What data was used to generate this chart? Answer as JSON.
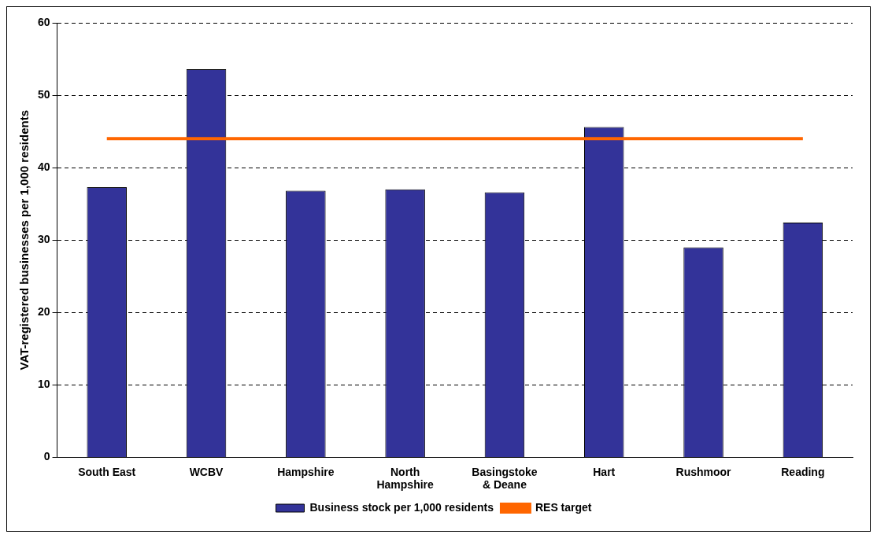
{
  "chart_data": {
    "type": "bar",
    "ylabel": "VAT-registered businesses per 1,000 residents",
    "categories": [
      "South East",
      "WCBV",
      "Hampshire",
      "North Hampshire",
      "Basingstoke & Deane",
      "Hart",
      "Rushmoor",
      "Reading"
    ],
    "series": [
      {
        "name": "Business stock per 1,000 residents",
        "color": "#333399",
        "values": [
          37.3,
          53.6,
          36.8,
          37.0,
          36.6,
          45.6,
          29.0,
          32.4
        ]
      },
      {
        "name": "RES target",
        "type": "line",
        "color": "#ff6600",
        "values": [
          44,
          44,
          44,
          44,
          44,
          44,
          44,
          44
        ]
      }
    ],
    "ylim": [
      0,
      60
    ],
    "yticks": [
      0,
      10,
      20,
      30,
      40,
      50,
      60
    ],
    "grid": "y",
    "legend": "bottom"
  }
}
